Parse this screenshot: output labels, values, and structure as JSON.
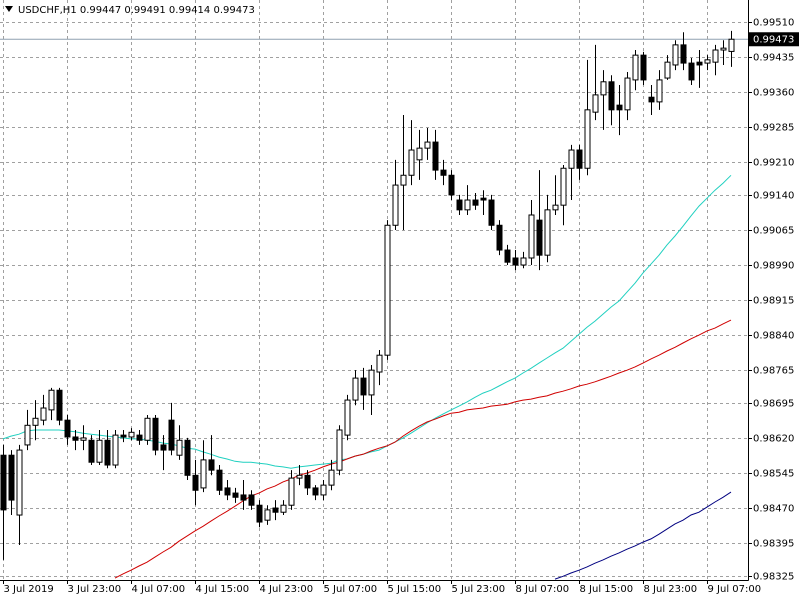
{
  "chart_data": {
    "type": "candlestick",
    "title": "USDCHF,H1 0.99447 0.99491 0.99414 0.99473",
    "categories": [
      "3 Jul 2019",
      null,
      null,
      null,
      null,
      null,
      null,
      null,
      "3 Jul 23:00",
      null,
      null,
      null,
      null,
      null,
      null,
      null,
      "4 Jul 07:00",
      null,
      null,
      null,
      null,
      null,
      null,
      null,
      "4 Jul 15:00",
      null,
      null,
      null,
      null,
      null,
      null,
      null,
      "4 Jul 23:00",
      null,
      null,
      null,
      null,
      null,
      null,
      null,
      "5 Jul 07:00",
      null,
      null,
      null,
      null,
      null,
      null,
      null,
      "5 Jul 15:00",
      null,
      null,
      null,
      null,
      null,
      null,
      null,
      "5 Jul 23:00",
      null,
      null,
      null,
      null,
      null,
      null,
      null,
      "8 Jul 07:00",
      null,
      null,
      null,
      null,
      null,
      null,
      null,
      "8 Jul 15:00",
      null,
      null,
      null,
      null,
      null,
      null,
      null,
      "8 Jul 23:00",
      null,
      null,
      null,
      null,
      null,
      null,
      null,
      "9 Jul 07:00",
      null,
      null,
      null
    ],
    "open": [
      0.98583,
      0.98583,
      0.98455,
      0.98605,
      0.98647,
      0.98658,
      0.9868,
      0.98722,
      0.98658,
      0.98622,
      0.98615,
      0.98615,
      0.98568,
      0.98615,
      0.98562,
      0.98626,
      0.98622,
      0.98626,
      0.98615,
      0.98662,
      0.98605,
      0.98658,
      0.98583,
      0.98615,
      0.9854,
      0.98513,
      0.98573,
      0.98551,
      0.98513,
      0.98502,
      0.98498,
      0.98498,
      0.98476,
      0.98444,
      0.9847,
      0.98461,
      0.98476,
      0.98534,
      0.9854,
      0.98513,
      0.98498,
      0.98519,
      0.98551,
      0.98626,
      0.98701,
      0.98748,
      0.98712,
      0.98761,
      0.98797,
      0.99075,
      0.99161,
      0.99182,
      0.99215,
      0.9924,
      0.99253,
      0.99193,
      0.99182,
      0.99129,
      0.99108,
      0.99129,
      0.99133,
      0.99129,
      0.99075,
      0.99022,
      0.99005,
      0.9899,
      0.99005,
      0.99086,
      0.99011,
      0.99108,
      0.99118,
      0.99197,
      0.99236,
      0.99197,
      0.99317,
      0.99354,
      0.99382,
      0.99332,
      0.99322,
      0.99386,
      0.99439,
      0.99349,
      0.99339,
      0.9939,
      0.99418,
      0.99461,
      0.99422,
      0.99424,
      0.99422,
      0.99424,
      0.9945,
      0.99447
    ],
    "high": [
      0.98605,
      0.98594,
      0.98605,
      0.9868,
      0.98701,
      0.98712,
      0.98727,
      0.98727,
      0.98669,
      0.98637,
      0.98647,
      0.98626,
      0.98637,
      0.98637,
      0.98637,
      0.98637,
      0.98641,
      0.98637,
      0.98669,
      0.98669,
      0.98626,
      0.98695,
      0.98647,
      0.9862,
      0.98573,
      0.98615,
      0.98626,
      0.98562,
      0.9853,
      0.98513,
      0.9853,
      0.98508,
      0.98487,
      0.98476,
      0.98487,
      0.98487,
      0.98551,
      0.98562,
      0.98551,
      0.98519,
      0.9853,
      0.98573,
      0.98647,
      0.98712,
      0.98765,
      0.9877,
      0.98776,
      0.98808,
      0.99086,
      0.99215,
      0.99311,
      0.993,
      0.99279,
      0.99283,
      0.99279,
      0.99215,
      0.99193,
      0.9914,
      0.99161,
      0.99144,
      0.9915,
      0.9914,
      0.99086,
      0.99033,
      0.99022,
      0.99018,
      0.99129,
      0.99193,
      0.9914,
      0.99182,
      0.99204,
      0.99247,
      0.99247,
      0.99429,
      0.99461,
      0.99407,
      0.99396,
      0.99375,
      0.99403,
      0.9945,
      0.99446,
      0.99375,
      0.99407,
      0.99439,
      0.99471,
      0.99488,
      0.99433,
      0.9945,
      0.99439,
      0.99461,
      0.99471,
      0.99491
    ],
    "low": [
      0.98359,
      0.98455,
      0.98391,
      0.98594,
      0.98615,
      0.98647,
      0.98658,
      0.98647,
      0.98605,
      0.98594,
      0.98594,
      0.98562,
      0.98562,
      0.98555,
      0.98555,
      0.98611,
      0.98615,
      0.98605,
      0.98605,
      0.98583,
      0.98551,
      0.98583,
      0.98573,
      0.9853,
      0.98476,
      0.98504,
      0.9854,
      0.98498,
      0.98487,
      0.98481,
      0.98466,
      0.98466,
      0.98429,
      0.98434,
      0.98444,
      0.98455,
      0.98466,
      0.98519,
      0.98498,
      0.98487,
      0.98487,
      0.98508,
      0.9854,
      0.98615,
      0.9869,
      0.9868,
      0.98669,
      0.98733,
      0.98787,
      0.99065,
      0.99065,
      0.99161,
      0.99172,
      0.99215,
      0.99172,
      0.99161,
      0.99129,
      0.99097,
      0.99097,
      0.99108,
      0.99097,
      0.99065,
      0.99011,
      0.9899,
      0.98979,
      0.98983,
      0.9899,
      0.98979,
      0.98996,
      0.99097,
      0.99075,
      0.99129,
      0.99172,
      0.99182,
      0.993,
      0.99279,
      0.99289,
      0.99268,
      0.993,
      0.99364,
      0.99375,
      0.99311,
      0.99322,
      0.99386,
      0.99407,
      0.99407,
      0.99375,
      0.99369,
      0.99407,
      0.99396,
      0.99418,
      0.99414
    ],
    "close": [
      0.98466,
      0.98487,
      0.98594,
      0.98647,
      0.98662,
      0.98684,
      0.98722,
      0.98658,
      0.98622,
      0.98615,
      0.9862,
      0.98568,
      0.98615,
      0.98562,
      0.98626,
      0.98622,
      0.98632,
      0.98615,
      0.98662,
      0.98594,
      0.98594,
      0.98594,
      0.98615,
      0.9854,
      0.98508,
      0.98573,
      0.98551,
      0.98508,
      0.98498,
      0.98493,
      0.98487,
      0.98476,
      0.9844,
      0.98466,
      0.98461,
      0.98476,
      0.98534,
      0.9854,
      0.98513,
      0.98498,
      0.98519,
      0.98551,
      0.98637,
      0.98701,
      0.98748,
      0.98712,
      0.98765,
      0.98797,
      0.99075,
      0.99161,
      0.99182,
      0.99236,
      0.9924,
      0.99253,
      0.99193,
      0.99182,
      0.9914,
      0.99108,
      0.99129,
      0.99118,
      0.99129,
      0.99075,
      0.99022,
      0.98996,
      0.9899,
      0.99005,
      0.99097,
      0.99011,
      0.99108,
      0.99118,
      0.99197,
      0.99236,
      0.99197,
      0.99322,
      0.99354,
      0.99382,
      0.99322,
      0.99322,
      0.9939,
      0.99439,
      0.99386,
      0.99339,
      0.99386,
      0.99424,
      0.99461,
      0.99422,
      0.99386,
      0.99418,
      0.99429,
      0.9945,
      0.99454,
      0.99473
    ],
    "bull_color": "#ffffff",
    "bear_color": "#000000",
    "lines": [
      {
        "color": "#20d0c0",
        "values": [
          0.98618,
          0.98624,
          0.98628,
          0.98635,
          0.98637,
          0.98637,
          0.98637,
          0.98637,
          0.98635,
          0.98633,
          0.9863,
          0.98628,
          0.98626,
          0.98624,
          0.98622,
          0.9862,
          0.98618,
          0.98618,
          0.98615,
          0.98613,
          0.98609,
          0.98607,
          0.98603,
          0.98598,
          0.98596,
          0.9859,
          0.98585,
          0.98579,
          0.98575,
          0.9857,
          0.98568,
          0.98568,
          0.98566,
          0.98564,
          0.9856,
          0.98558,
          0.98555,
          0.98558,
          0.9856,
          0.98562,
          0.98564,
          0.98566,
          0.98573,
          0.98575,
          0.98581,
          0.98585,
          0.9859,
          0.98594,
          0.98603,
          0.98611,
          0.9862,
          0.9863,
          0.98641,
          0.98652,
          0.98662,
          0.98671,
          0.9868,
          0.98688,
          0.98697,
          0.98707,
          0.98716,
          0.98722,
          0.98731,
          0.9874,
          0.98748,
          0.98759,
          0.98769,
          0.9878,
          0.98791,
          0.98802,
          0.98812,
          0.98827,
          0.98842,
          0.98857,
          0.9887,
          0.98885,
          0.989,
          0.98913,
          0.98932,
          0.98951,
          0.98973,
          0.98992,
          0.99011,
          0.99033,
          0.99052,
          0.99073,
          0.99095,
          0.99116,
          0.99133,
          0.9915,
          0.99165,
          0.99182
        ]
      },
      {
        "color": "#d00000",
        "values": [
          null,
          null,
          null,
          null,
          null,
          null,
          null,
          null,
          null,
          null,
          null,
          null,
          null,
          null,
          0.9832,
          0.98329,
          0.98337,
          0.98346,
          0.98354,
          0.98365,
          0.98376,
          0.98386,
          0.98399,
          0.9841,
          0.98421,
          0.98431,
          0.98442,
          0.98453,
          0.98463,
          0.98474,
          0.98485,
          0.98496,
          0.98502,
          0.98511,
          0.98517,
          0.98526,
          0.98532,
          0.9854,
          0.98545,
          0.98551,
          0.98558,
          0.98564,
          0.98568,
          0.98575,
          0.98581,
          0.98585,
          0.98592,
          0.98598,
          0.98603,
          0.98611,
          0.98624,
          0.98635,
          0.98645,
          0.98654,
          0.9866,
          0.98667,
          0.98673,
          0.98675,
          0.9868,
          0.98682,
          0.98684,
          0.98688,
          0.9869,
          0.98692,
          0.98697,
          0.98701,
          0.98703,
          0.98707,
          0.9871,
          0.98716,
          0.9872,
          0.98725,
          0.98731,
          0.98735,
          0.9874,
          0.98746,
          0.98752,
          0.98759,
          0.98765,
          0.98772,
          0.9878,
          0.98789,
          0.98797,
          0.98806,
          0.98814,
          0.98823,
          0.98832,
          0.9884,
          0.98849,
          0.98855,
          0.98864,
          0.98872
        ]
      },
      {
        "color": "#000080",
        "values": [
          null,
          null,
          null,
          null,
          null,
          null,
          null,
          null,
          null,
          null,
          null,
          null,
          null,
          null,
          null,
          null,
          null,
          null,
          null,
          null,
          null,
          null,
          null,
          null,
          null,
          null,
          null,
          null,
          null,
          null,
          null,
          null,
          null,
          null,
          null,
          null,
          null,
          null,
          null,
          null,
          null,
          null,
          null,
          null,
          null,
          null,
          null,
          null,
          null,
          null,
          null,
          null,
          null,
          null,
          null,
          null,
          null,
          null,
          null,
          null,
          null,
          null,
          null,
          null,
          null,
          null,
          null,
          null,
          null,
          0.98318,
          0.98324,
          0.98331,
          0.98337,
          0.98344,
          0.98352,
          0.98359,
          0.98367,
          0.98374,
          0.98382,
          0.98389,
          0.98397,
          0.98404,
          0.98414,
          0.98425,
          0.98436,
          0.98444,
          0.98455,
          0.98461,
          0.98472,
          0.98483,
          0.98493,
          0.98504
        ]
      }
    ],
    "last_price": 0.99473,
    "ylim": [
      0.98316,
      0.99557
    ],
    "yticks": [
      {
        "value": 0.9951,
        "label": "0.99510"
      },
      0.99435,
      {
        "value": 0.9936,
        "label": "0.99360"
      },
      0.99285,
      {
        "value": 0.9921,
        "label": "0.99210"
      },
      {
        "value": 0.9914,
        "label": "0.99140"
      },
      0.99065,
      {
        "value": 0.9899,
        "label": "0.98990"
      },
      0.98915,
      {
        "value": 0.9884,
        "label": "0.98840"
      },
      0.98765,
      0.98695,
      {
        "value": 0.9862,
        "label": "0.98620"
      },
      0.98545,
      {
        "value": 0.9847,
        "label": "0.98470"
      },
      0.98395,
      0.98325
    ],
    "grid": true
  }
}
